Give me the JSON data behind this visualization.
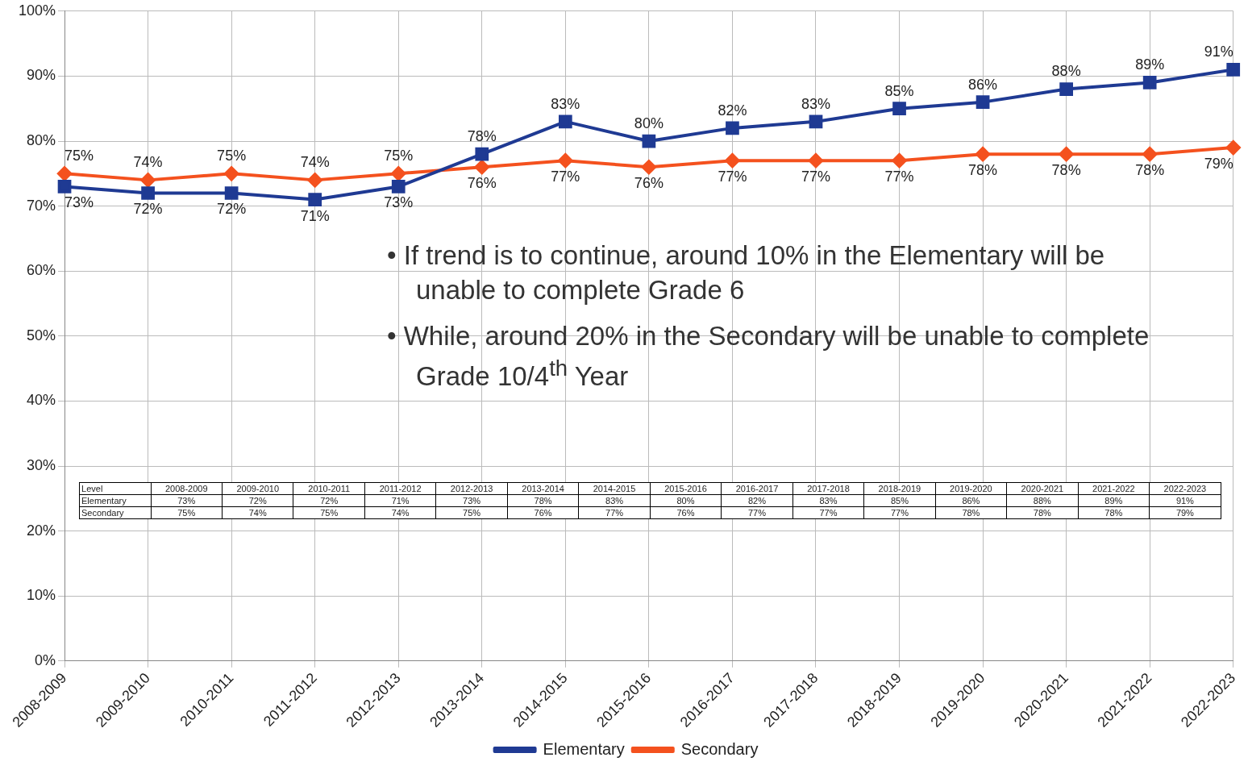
{
  "chart_data": {
    "type": "line",
    "categories": [
      "2008-2009",
      "2009-2010",
      "2010-2011",
      "2011-2012",
      "2012-2013",
      "2013-2014",
      "2014-2015",
      "2015-2016",
      "2016-2017",
      "2017-2018",
      "2018-2019",
      "2019-2020",
      "2020-2021",
      "2021-2022",
      "2022-2023"
    ],
    "series": [
      {
        "name": "Elementary",
        "color": "#1f3a93",
        "marker": "square",
        "values": [
          73,
          72,
          72,
          71,
          73,
          78,
          83,
          80,
          82,
          83,
          85,
          86,
          88,
          89,
          91
        ],
        "value_labels": [
          "73%",
          "72%",
          "72%",
          "71%",
          "73%",
          "78%",
          "83%",
          "80%",
          "82%",
          "83%",
          "85%",
          "86%",
          "88%",
          "89%",
          "91%"
        ]
      },
      {
        "name": "Secondary",
        "color": "#f4511e",
        "marker": "diamond",
        "values": [
          75,
          74,
          75,
          74,
          75,
          76,
          77,
          76,
          77,
          77,
          77,
          78,
          78,
          78,
          79
        ],
        "value_labels": [
          "75%",
          "74%",
          "75%",
          "74%",
          "75%",
          "76%",
          "77%",
          "76%",
          "77%",
          "77%",
          "77%",
          "78%",
          "78%",
          "78%",
          "79%"
        ]
      }
    ],
    "ylim": [
      0,
      100
    ],
    "yticks": [
      {
        "value": 0,
        "label": "0%"
      },
      {
        "value": 10,
        "label": "10%"
      },
      {
        "value": 20,
        "label": "20%"
      },
      {
        "value": 30,
        "label": "30%"
      },
      {
        "value": 40,
        "label": "40%"
      },
      {
        "value": 50,
        "label": "50%"
      },
      {
        "value": 60,
        "label": "60%"
      },
      {
        "value": 70,
        "label": "70%"
      },
      {
        "value": 80,
        "label": "80%"
      },
      {
        "value": 90,
        "label": "90%"
      },
      {
        "value": 100,
        "label": "100%"
      }
    ],
    "grid": true,
    "legend": "bottom",
    "line_style": "solid",
    "annotations": [
      "• If trend is to continue, around 10% in the Elementary will be unable to complete Grade 6",
      "• While, around 20% in the Secondary will be unable to complete Grade 10/4$^{th}$ Year",
      "Level"
    ]
  }
}
